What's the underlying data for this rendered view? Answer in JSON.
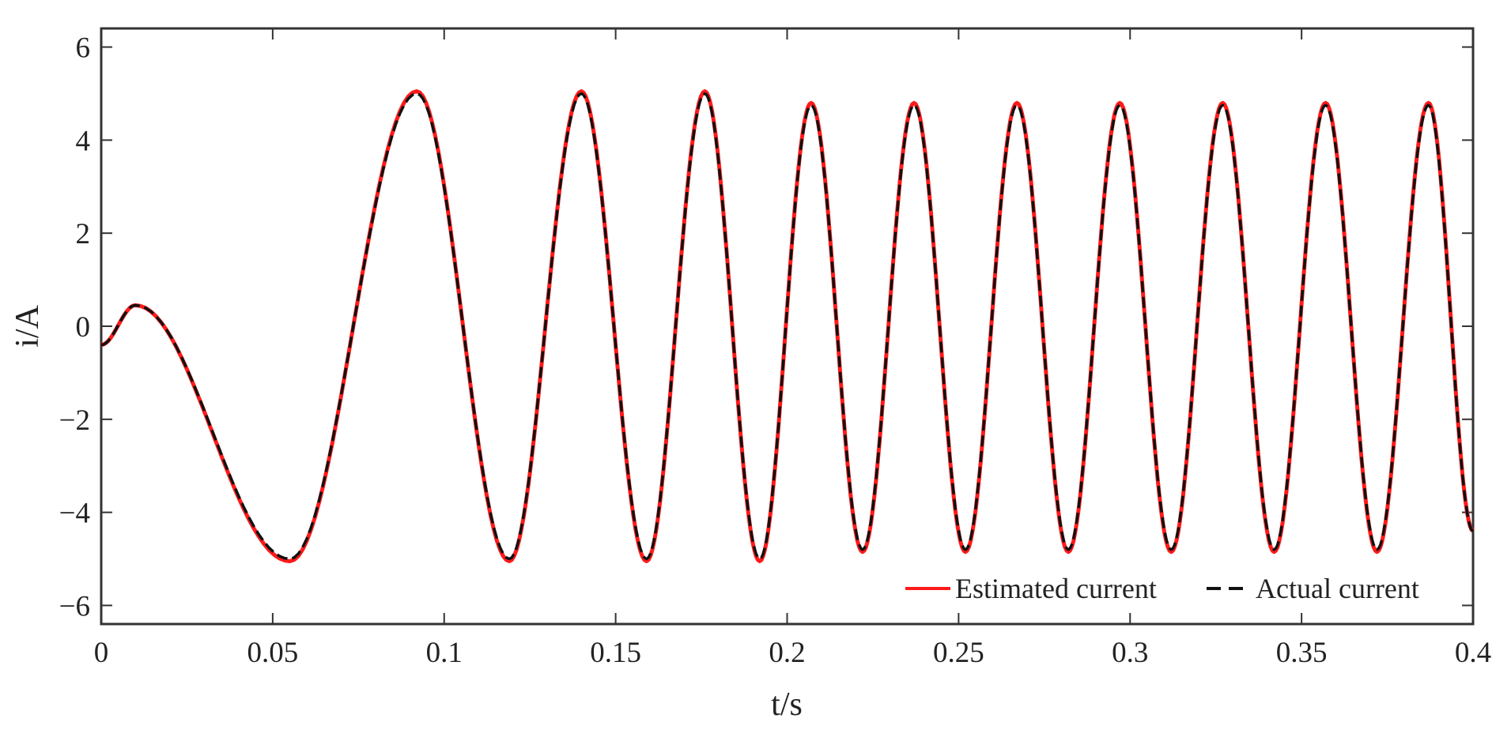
{
  "chart_data": {
    "type": "line",
    "title": "",
    "xlabel": "t/s",
    "ylabel": "i/A",
    "xlim": [
      0,
      0.4
    ],
    "ylim": [
      -6.4,
      6.4
    ],
    "xticks": [
      0,
      0.05,
      0.1,
      0.15,
      0.2,
      0.25,
      0.3,
      0.35,
      0.4
    ],
    "xtick_labels": [
      "0",
      "0.05",
      "0.1",
      "0.15",
      "0.2",
      "0.25",
      "0.3",
      "0.35",
      "0.4"
    ],
    "yticks": [
      6,
      4,
      2,
      0,
      -2,
      -4,
      -6
    ],
    "ytick_labels": [
      "6",
      "4",
      "2",
      "0",
      "−2",
      "−4",
      "−6"
    ],
    "grid": false,
    "legend_position": "bottom-right",
    "series": [
      {
        "name": "Estimated current",
        "color": "#ff1a1a",
        "style": "solid",
        "x": [
          0,
          0.01,
          0.055,
          0.092,
          0.119,
          0.14,
          0.159,
          0.176,
          0.192,
          0.207,
          0.222,
          0.237,
          0.252,
          0.267,
          0.282,
          0.297,
          0.312,
          0.327,
          0.342,
          0.357,
          0.372,
          0.387,
          0.4
        ],
        "y": [
          -0.4,
          0.45,
          -5.05,
          5.05,
          -5.05,
          5.05,
          -5.05,
          5.05,
          -5.05,
          4.8,
          -4.85,
          4.8,
          -4.85,
          4.8,
          -4.85,
          4.8,
          -4.85,
          4.8,
          -4.85,
          4.8,
          -4.85,
          4.8,
          -4.4
        ]
      },
      {
        "name": "Actual current",
        "color": "#111111",
        "style": "dashed",
        "x": [
          0,
          0.01,
          0.055,
          0.092,
          0.119,
          0.14,
          0.159,
          0.176,
          0.192,
          0.207,
          0.222,
          0.237,
          0.252,
          0.267,
          0.282,
          0.297,
          0.312,
          0.327,
          0.342,
          0.357,
          0.372,
          0.387,
          0.4
        ],
        "y": [
          -0.4,
          0.45,
          -5.0,
          5.0,
          -5.0,
          5.0,
          -5.0,
          5.0,
          -5.0,
          4.75,
          -4.8,
          4.75,
          -4.8,
          4.75,
          -4.8,
          4.75,
          -4.8,
          4.75,
          -4.8,
          4.75,
          -4.8,
          4.75,
          -4.4
        ]
      }
    ]
  }
}
